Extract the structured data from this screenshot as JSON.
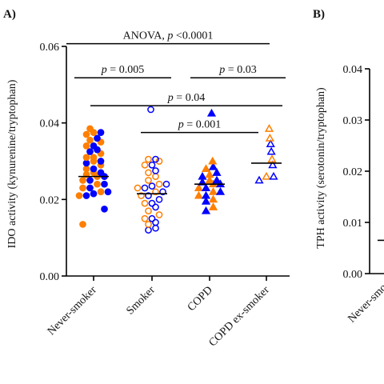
{
  "colors": {
    "orange": "#ff7f00",
    "blue": "#0000ff",
    "axis": "#000000"
  },
  "chart_data": [
    {
      "panel": "A)",
      "type": "scatter",
      "ylabel": "IDO activity (kynurenine/tryptophan)",
      "ylim": [
        0,
        0.06
      ],
      "yticks": [
        "0.00",
        "0.02",
        "0.04",
        "0.06"
      ],
      "categories": [
        "Never-smoker",
        "Smoker",
        "COPD",
        "COPD ex-smoker"
      ],
      "means": [
        0.026,
        0.0215,
        0.024,
        0.0295
      ],
      "groups": [
        {
          "category": "Never-smoker",
          "marker": "filled-circle",
          "orange": [
            0.0385,
            0.0375,
            0.037,
            0.0355,
            0.035,
            0.034,
            0.032,
            0.031,
            0.031,
            0.03,
            0.029,
            0.028,
            0.027,
            0.0265,
            0.026,
            0.025,
            0.024,
            0.023,
            0.022,
            0.021,
            0.0135
          ],
          "blue": [
            0.0375,
            0.036,
            0.034,
            0.033,
            0.0325,
            0.03,
            0.0295,
            0.028,
            0.027,
            0.026,
            0.025,
            0.024,
            0.023,
            0.022,
            0.0215,
            0.021,
            0.0175
          ]
        },
        {
          "category": "Smoker",
          "marker": "open-circle",
          "orange": [
            0.0305,
            0.03,
            0.029,
            0.027,
            0.026,
            0.025,
            0.024,
            0.023,
            0.022,
            0.021,
            0.019,
            0.017,
            0.016,
            0.015,
            0.0135
          ],
          "blue": [
            0.0435,
            0.0305,
            0.029,
            0.0275,
            0.024,
            0.0235,
            0.023,
            0.022,
            0.021,
            0.02,
            0.019,
            0.018,
            0.015,
            0.014,
            0.0125,
            0.012
          ]
        },
        {
          "category": "COPD",
          "marker": "filled-triangle",
          "orange": [
            0.03,
            0.028,
            0.0265,
            0.025,
            0.024,
            0.023,
            0.022,
            0.021,
            0.02,
            0.018
          ],
          "blue": [
            0.0425,
            0.0285,
            0.027,
            0.026,
            0.025,
            0.0245,
            0.024,
            0.023,
            0.022,
            0.021,
            0.0195,
            0.017
          ]
        },
        {
          "category": "COPD ex-smoker",
          "marker": "open-triangle",
          "orange": [
            0.0385,
            0.036,
            0.0305,
            0.026
          ],
          "blue": [
            0.0345,
            0.0325,
            0.029,
            0.026,
            0.025
          ]
        }
      ],
      "annotations": [
        {
          "label": "ANOVA, ",
          "p": "p",
          "rest": " <0.0001",
          "from": 0,
          "to": 3,
          "y": 0.0607
        },
        {
          "p": "p",
          "rest": " = 0.005",
          "from": 0,
          "to": 1,
          "y": 0.0518
        },
        {
          "p": "p",
          "rest": " = 0.03",
          "from": 2,
          "to": 3,
          "y": 0.0518
        },
        {
          "p": "p",
          "rest": " = 0.04",
          "from": 0,
          "to": 3,
          "y": 0.0445
        },
        {
          "p": "p",
          "rest": " = 0.001",
          "from": 1,
          "to": 3,
          "y": 0.0375
        }
      ]
    },
    {
      "panel": "B)",
      "type": "scatter",
      "ylabel": "TPH activity (serotonin/tryptophan)",
      "ylim": [
        0,
        0.04
      ],
      "yticks": [
        "0.00",
        "0.01",
        "0.02",
        "0.03",
        "0.04"
      ],
      "categories": [
        "Never-smoker"
      ],
      "visible_category_text": "Never-smo",
      "means": [
        0.0065
      ]
    }
  ]
}
